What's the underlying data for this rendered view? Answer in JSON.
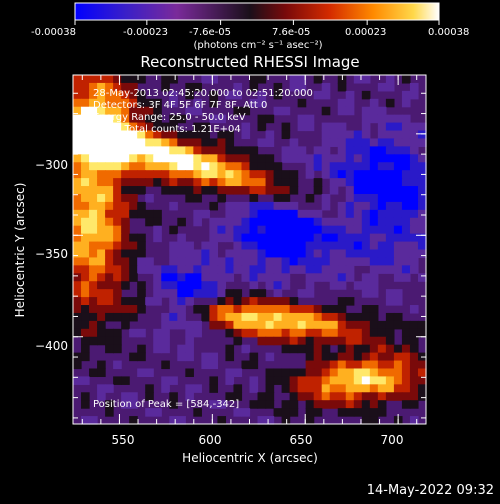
{
  "colorbar": {
    "ticks": [
      "-0.00038",
      "-0.00023",
      "-7.6e-05",
      "7.6e-05",
      "0.00023",
      "0.00038"
    ],
    "tick_values": [
      -0.00038,
      -0.00023,
      -7.6e-05,
      7.6e-05,
      0.00023,
      0.00038
    ],
    "unit_label": "(photons cm⁻² s⁻¹ asec⁻²)",
    "colors": [
      "#0000ff",
      "#3a1fc8",
      "#7a2a9a",
      "#1a0f1a",
      "#7a0a0a",
      "#d42b00",
      "#ff8a00",
      "#ffd84a",
      "#ffffff"
    ]
  },
  "chart_data": {
    "type": "heatmap",
    "title": "Reconstructed RHESSI Image",
    "xlabel": "Heliocentric X (arcsec)",
    "ylabel": "Heliocentric Y (arcsec)",
    "xlim": [
      525,
      715
    ],
    "ylim": [
      -443,
      -271
    ],
    "xticks": [
      550,
      600,
      650,
      700
    ],
    "yticks": [
      -300,
      -350,
      -400
    ],
    "xtick_labels": [
      "550",
      "600",
      "650",
      "700"
    ],
    "ytick_labels": [
      "−300",
      "−350",
      "−400"
    ],
    "info_lines": [
      "28-May-2013 02:45:20.000 to 02:51:20.000",
      "Detectors: 3F 4F 5F 6F 7F 8F, Att 0",
      "Energy Range: 25.0 - 50.0 keV",
      "Clean    Total counts: 1.21E+04"
    ],
    "peak_label": "Position of Peak = [584,-342]",
    "peak": [
      584,
      -342
    ]
  },
  "timestamp": "14-May-2022 09:32"
}
